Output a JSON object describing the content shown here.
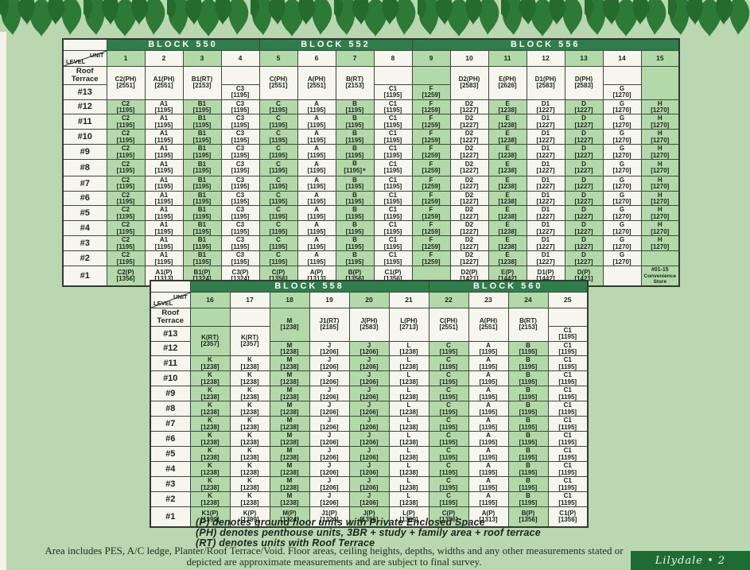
{
  "page": {
    "background": "#bad7b2",
    "leaf_color": "#2d7a37",
    "leaf_color_dark": "#256b2e",
    "block_band_color": "#2f7d4a",
    "cell_green": "#b3d8aa",
    "cell_white": "#f6f5ee",
    "footer_bar_color": "#1e6b33",
    "footer_brand": "Lilydale • 2",
    "footnotes": [
      "(P) denotes ground floor units with Private Enclosed Space",
      "(PH) denotes penthouse units, 3BR + study + family area + roof terrace",
      "(RT) denotes units with Roof Terrace"
    ],
    "disclaimer": "Area includes PES, A/C ledge, Planter/Roof Terrace/Void. Floor areas, ceiling heights, depths, widths and any other measurements stated or depicted are approximate measurements and are subject to final survey."
  },
  "tables": [
    {
      "name": "upper",
      "corner": {
        "top": "UNIT",
        "bottom": "LEVEL"
      },
      "label_col_width": 55,
      "data_col_width": 48,
      "blocks": [
        {
          "label": "BLOCK 550",
          "span": 4
        },
        {
          "label": "BLOCK 552",
          "span": 4
        },
        {
          "label": "BLOCK 556",
          "span": 7
        }
      ],
      "units": [
        "1",
        "2",
        "3",
        "4",
        "5",
        "6",
        "7",
        "8",
        "9",
        "10",
        "11",
        "12",
        "13",
        "14",
        "15"
      ],
      "row_labels": [
        "Roof Terrace",
        "#13",
        "#12",
        "#11",
        "#10",
        "#9",
        "#8",
        "#7",
        "#6",
        "#5",
        "#4",
        "#3",
        "#2",
        "#1"
      ],
      "columns": [
        {
          "unit": "1",
          "cells": [
            {
              "t": "C2(PH)",
              "a": "[2551]",
              "r": 2,
              "bg": "w"
            },
            {
              "t": "C2",
              "a": "[1195]",
              "rep": 11
            },
            {
              "t": "C2(P)",
              "a": "[1356]"
            }
          ]
        },
        {
          "unit": "2",
          "cells": [
            {
              "t": "A1(PH)",
              "a": "[2551]",
              "r": 2,
              "bg": "w"
            },
            {
              "t": "A1",
              "a": "[1195]",
              "rep": 11
            },
            {
              "t": "A1(P)",
              "a": "[1313]"
            }
          ]
        },
        {
          "unit": "3",
          "cells": [
            {
              "t": "B1(RT)",
              "a": "[2153]",
              "r": 2,
              "bg": "w"
            },
            {
              "t": "B1",
              "a": "[1195]",
              "rep": 11
            },
            {
              "t": "B1(P)",
              "a": "[1324]"
            }
          ]
        },
        {
          "unit": "4",
          "cells": [
            {},
            {
              "t": "C3",
              "a": "[1195]",
              "rep": 12
            },
            {
              "t": "C3(P)",
              "a": "[1324]"
            }
          ]
        },
        {
          "unit": "5",
          "cells": [
            {
              "t": "C(PH)",
              "a": "[2551]",
              "r": 2,
              "bg": "w"
            },
            {
              "t": "C",
              "a": "[1195]",
              "rep": 11
            },
            {
              "t": "C(P)",
              "a": "[1356]"
            }
          ]
        },
        {
          "unit": "6",
          "cells": [
            {
              "t": "A(PH)",
              "a": "[2551]",
              "r": 2,
              "bg": "w"
            },
            {
              "t": "A",
              "a": "[1195]",
              "rep": 11
            },
            {
              "t": "A(P)",
              "a": "[1313]"
            }
          ]
        },
        {
          "unit": "7",
          "cells": [
            {
              "t": "B(RT)",
              "a": "[2153]",
              "r": 2,
              "bg": "w"
            },
            {
              "t": "B",
              "a": "[1195]",
              "rep": 4
            },
            {
              "t": "B",
              "a": "[1195]",
              "star": true
            },
            {
              "t": "B",
              "a": "[1195]",
              "rep": 6
            },
            {
              "t": "B(P)",
              "a": "[1356]"
            }
          ]
        },
        {
          "unit": "8",
          "cells": [
            {},
            {
              "t": "C1",
              "a": "[1195]",
              "rep": 12
            },
            {
              "t": "C1(P)",
              "a": "[1356]"
            }
          ]
        },
        {
          "unit": "9",
          "cells": [
            {},
            {
              "t": "F",
              "a": "[1259]",
              "rep": 12
            },
            {}
          ]
        },
        {
          "unit": "10",
          "cells": [
            {
              "t": "D2(PH)",
              "a": "[2583]",
              "r": 2,
              "bg": "w"
            },
            {
              "t": "D2",
              "a": "[1227]",
              "rep": 11
            },
            {
              "t": "D2(P)",
              "a": "[1421]"
            }
          ]
        },
        {
          "unit": "11",
          "cells": [
            {
              "t": "E(PH)",
              "a": "[2626]",
              "r": 2,
              "bg": "w"
            },
            {
              "t": "E",
              "a": "[1238]",
              "rep": 11
            },
            {
              "t": "E(P)",
              "a": "[1442]"
            }
          ]
        },
        {
          "unit": "12",
          "cells": [
            {
              "t": "D1(PH)",
              "a": "[2583]",
              "r": 2,
              "bg": "w"
            },
            {
              "t": "D1",
              "a": "[1227]",
              "rep": 11
            },
            {
              "t": "D1(P)",
              "a": "[1442]"
            }
          ]
        },
        {
          "unit": "13",
          "cells": [
            {
              "t": "D(PH)",
              "a": "[2583]",
              "r": 2,
              "bg": "w"
            },
            {
              "t": "D",
              "a": "[1227]",
              "rep": 11
            },
            {
              "t": "D(P)",
              "a": "[1421]"
            }
          ]
        },
        {
          "unit": "14",
          "cells": [
            {},
            {
              "t": "G",
              "a": "[1270]",
              "rep": 12
            },
            {}
          ]
        },
        {
          "unit": "15",
          "cells": [
            {
              "r": 2
            },
            {
              "t": "H",
              "a": "[1270]",
              "rep": 10
            },
            {},
            {
              "t": "#01-15",
              "a": "Convenience Store",
              "cls": "store"
            }
          ]
        }
      ]
    },
    {
      "name": "lower",
      "corner": {
        "top": "UNIT",
        "bottom": "LEVEL"
      },
      "label_col_width": 50,
      "data_col_width": 50,
      "blocks": [
        {
          "label": "BLOCK 558",
          "span": 6
        },
        {
          "label": "BLOCK 560",
          "span": 4
        }
      ],
      "units": [
        "16",
        "17",
        "18",
        "19",
        "20",
        "21",
        "22",
        "23",
        "24",
        "25"
      ],
      "row_labels": [
        "Roof Terrace",
        "#13",
        "#12",
        "#11",
        "#10",
        "#9",
        "#8",
        "#7",
        "#6",
        "#5",
        "#4",
        "#3",
        "#2",
        "#1"
      ],
      "columns": [
        {
          "unit": "16",
          "cells": [
            {},
            {
              "t": "K(RT)",
              "a": "[2357]",
              "r": 2
            },
            {
              "t": "K",
              "a": "[1238]",
              "rep": 10
            },
            {
              "t": "K1(P)",
              "a": "[1399]"
            }
          ]
        },
        {
          "unit": "17",
          "cells": [
            {},
            {
              "t": "K(RT)",
              "a": "[2357]",
              "r": 2
            },
            {
              "t": "K",
              "a": "[1238]",
              "rep": 10
            },
            {
              "t": "K(P)",
              "a": "[1399]"
            }
          ]
        },
        {
          "unit": "18",
          "cells": [
            {
              "t": "M",
              "a": "[1238]",
              "r": 2
            },
            {
              "t": "M",
              "a": "[1238]",
              "rep": 11
            },
            {
              "t": "M(P)",
              "a": "[1324]"
            }
          ]
        },
        {
          "unit": "19",
          "cells": [
            {
              "t": "J1(RT)",
              "a": "[2185]",
              "r": 2,
              "bg": "w"
            },
            {
              "t": "J",
              "a": "[1206]",
              "rep": 11
            },
            {
              "t": "J1(P)",
              "a": "[1324]"
            }
          ]
        },
        {
          "unit": "20",
          "cells": [
            {
              "t": "J(PH)",
              "a": "[2583]",
              "r": 2,
              "bg": "w"
            },
            {
              "t": "J",
              "a": "[1206]",
              "rep": 11
            },
            {
              "t": "J(P)",
              "a": "[1356]"
            }
          ]
        },
        {
          "unit": "21",
          "cells": [
            {
              "t": "L(PH)",
              "a": "[2713]",
              "r": 2,
              "bg": "w"
            },
            {
              "t": "L",
              "a": "[1238]",
              "rep": 11
            },
            {
              "t": "L(P)",
              "a": "[1389]"
            }
          ]
        },
        {
          "unit": "22",
          "cells": [
            {
              "t": "C(PH)",
              "a": "[2551]",
              "r": 2,
              "bg": "w"
            },
            {
              "t": "C",
              "a": "[1195]",
              "rep": 11
            },
            {
              "t": "C(P)",
              "a": "[1356]"
            }
          ]
        },
        {
          "unit": "23",
          "cells": [
            {
              "t": "A(PH)",
              "a": "[2551]",
              "r": 2,
              "bg": "w"
            },
            {
              "t": "A",
              "a": "[1195]",
              "rep": 11
            },
            {
              "t": "A(P)",
              "a": "[1313]"
            }
          ]
        },
        {
          "unit": "24",
          "cells": [
            {
              "t": "B(RT)",
              "a": "[2153]",
              "r": 2,
              "bg": "w"
            },
            {
              "t": "B",
              "a": "[1195]",
              "rep": 11
            },
            {
              "t": "B(P)",
              "a": "[1356]"
            }
          ]
        },
        {
          "unit": "25",
          "cells": [
            {},
            {
              "t": "C1",
              "a": "[1195]",
              "rep": 12
            },
            {
              "t": "C1(P)",
              "a": "[1356]"
            }
          ]
        }
      ]
    }
  ]
}
